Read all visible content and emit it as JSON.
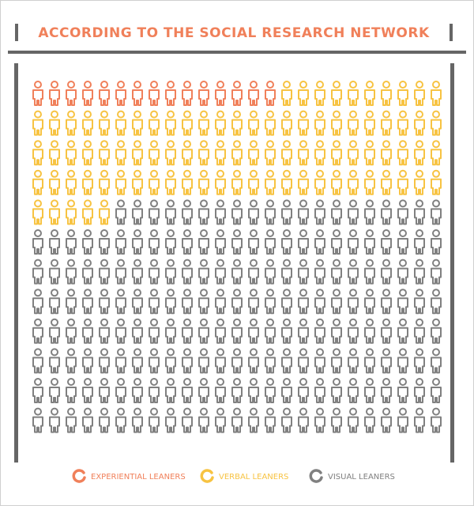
{
  "chart_data": {
    "type": "pictograph",
    "title": "ACCORDING TO THE SOCIAL RESEARCH NETWORK",
    "series": [
      {
        "name": "EXPERIENTIAL LEANERS",
        "color": "#f0805a",
        "values": [
          15
        ]
      },
      {
        "name": "VERBAL LEANERS",
        "color": "#f7c342",
        "values": [
          90
        ]
      },
      {
        "name": "VISUAL LEANERS",
        "color": "#808080",
        "values": [
          195
        ]
      }
    ]
  }
}
